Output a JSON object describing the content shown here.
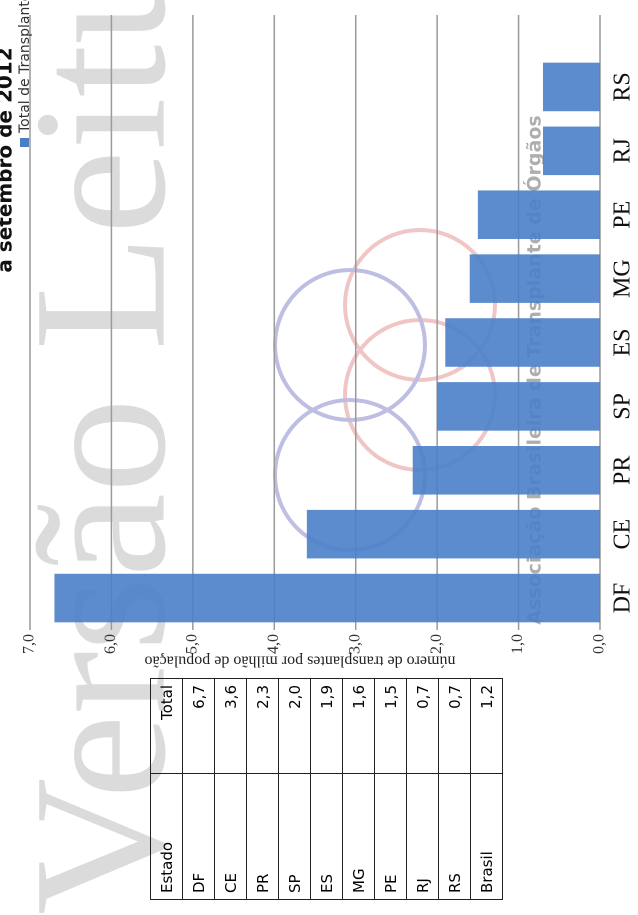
{
  "chart_data": {
    "type": "bar",
    "title": "a setembro de 2012",
    "watermark": "Versão Leitura",
    "source_note": "Associação Brasileira de Transplante de Órgãos",
    "y_label": "número de transplantes por milhão de população",
    "categories": [
      "DF",
      "CE",
      "PR",
      "SP",
      "ES",
      "MG",
      "PE",
      "RJ",
      "RS"
    ],
    "series": [
      {
        "name": "Total de Transplantes",
        "color": "#4a7fc8",
        "values": [
          6.7,
          3.6,
          2.3,
          2.0,
          1.9,
          1.6,
          1.5,
          0.7,
          0.7
        ]
      }
    ],
    "ylim": [
      0,
      7
    ],
    "yticks": [
      {
        "value": 0,
        "label": "0,0"
      },
      {
        "value": 1,
        "label": "1,0"
      },
      {
        "value": 2,
        "label": "2,0"
      },
      {
        "value": 3,
        "label": "3,0"
      },
      {
        "value": 4,
        "label": "4,0"
      },
      {
        "value": 5,
        "label": "5,0"
      },
      {
        "value": 6,
        "label": "6,0"
      },
      {
        "value": 7,
        "label": "7,0"
      }
    ],
    "grid": true,
    "legend": "top-right"
  },
  "table": {
    "header": [
      "Estado",
      "Total"
    ],
    "rows": [
      [
        "DF",
        "6,7"
      ],
      [
        "CE",
        "3,6"
      ],
      [
        "PR",
        "2,3"
      ],
      [
        "SP",
        "2,0"
      ],
      [
        "ES",
        "1,9"
      ],
      [
        "MG",
        "1,6"
      ],
      [
        "PE",
        "1,5"
      ],
      [
        "RJ",
        "0,7"
      ],
      [
        "RS",
        "0,7"
      ],
      [
        "Brasil",
        "1,2"
      ]
    ]
  }
}
